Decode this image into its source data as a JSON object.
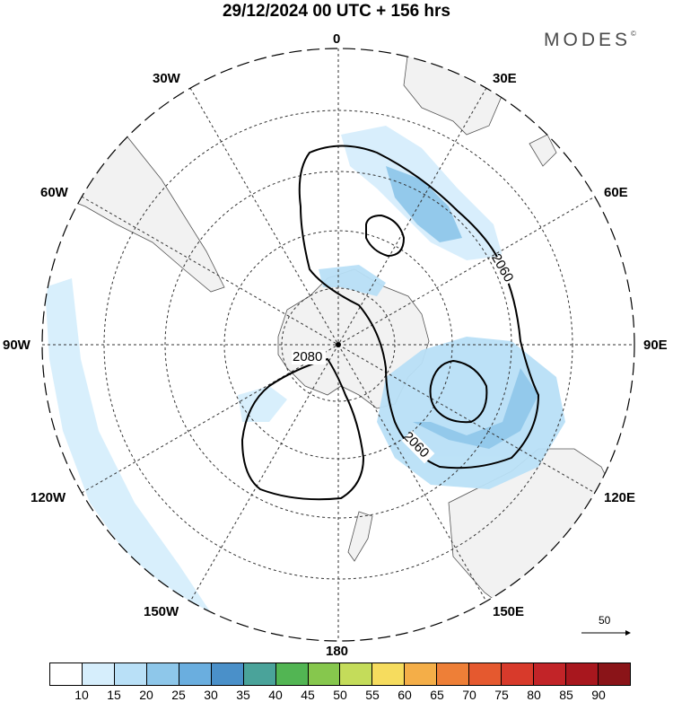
{
  "header": {
    "title": "29/12/2024  00 UTC  + 156 hrs",
    "brand": "MODES",
    "brand_mark": "©"
  },
  "map": {
    "projection": "south-polar-stereographic",
    "longitude_labels": {
      "top": "0",
      "top_right": "30E",
      "upper_right": "60E",
      "right": "90E",
      "lower_right": "120E",
      "bottom_right": "150E",
      "bottom": "180",
      "bottom_left": "150W",
      "lower_left": "120W",
      "left": "90W",
      "upper_left": "60W",
      "top_left": "30W"
    },
    "contour_labels": [
      "2060",
      "2080",
      "2060"
    ],
    "reference_vector_label": "50",
    "colors": {
      "land": "#f2f2f2",
      "coast": "#555555",
      "grid": "#333333",
      "contour": "#000000",
      "shade_10_15": "#d6eefc",
      "shade_15_20": "#b9e0f7",
      "shade_20_25": "#8ec7ea",
      "shade_25_30": "#6aaedf"
    }
  },
  "legend": {
    "labels": [
      "10",
      "15",
      "20",
      "25",
      "30",
      "35",
      "40",
      "45",
      "50",
      "55",
      "60",
      "65",
      "70",
      "75",
      "80",
      "85",
      "90"
    ],
    "colors": [
      "#ffffff",
      "#d6eefc",
      "#b9e0f7",
      "#8ec7ea",
      "#6aaedf",
      "#4a90c9",
      "#4aa39a",
      "#52b553",
      "#86c74d",
      "#c4dc5a",
      "#f6dc5e",
      "#f4ae48",
      "#ee7f37",
      "#e5592f",
      "#d83a2b",
      "#c22428",
      "#a8171e",
      "#8a1418"
    ]
  }
}
